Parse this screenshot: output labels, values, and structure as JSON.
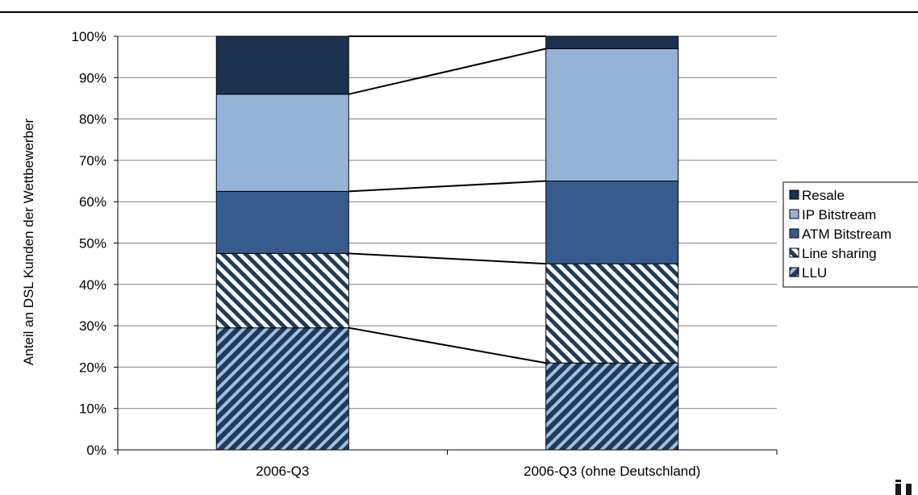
{
  "chart_data": {
    "type": "bar",
    "stacked": true,
    "percent_axis": true,
    "categories": [
      "2006-Q3",
      "2006-Q3 (ohne Deutschland)"
    ],
    "series": [
      {
        "name": "LLU",
        "values": [
          29.5,
          21.0
        ],
        "color": "#1f3b5c",
        "pattern": "diagonal stripes (dark blue / light blue)"
      },
      {
        "name": "Line sharing",
        "values": [
          18.0,
          24.0
        ],
        "color": "#ffffff",
        "pattern": "diagonal stripes (navy / white)"
      },
      {
        "name": "ATM Bitstream",
        "values": [
          15.0,
          20.0
        ],
        "color": "#355c8c"
      },
      {
        "name": "IP Bitstream",
        "values": [
          23.5,
          32.0
        ],
        "color": "#95b3d7"
      },
      {
        "name": "Resale",
        "values": [
          14.0,
          3.0
        ],
        "color": "#1c3350"
      }
    ],
    "ylabel": "Anteil an DSL Kunden der Wettbewerber",
    "xlabel": "",
    "ylim": [
      0,
      100
    ],
    "yticks": [
      "0%",
      "10%",
      "20%",
      "30%",
      "40%",
      "50%",
      "60%",
      "70%",
      "80%",
      "90%",
      "100%"
    ],
    "grid": true,
    "legend_position": "right",
    "legend_order": [
      "Resale",
      "IP Bitstream",
      "ATM Bitstream",
      "Line sharing",
      "LLU"
    ],
    "series_lines": true
  }
}
